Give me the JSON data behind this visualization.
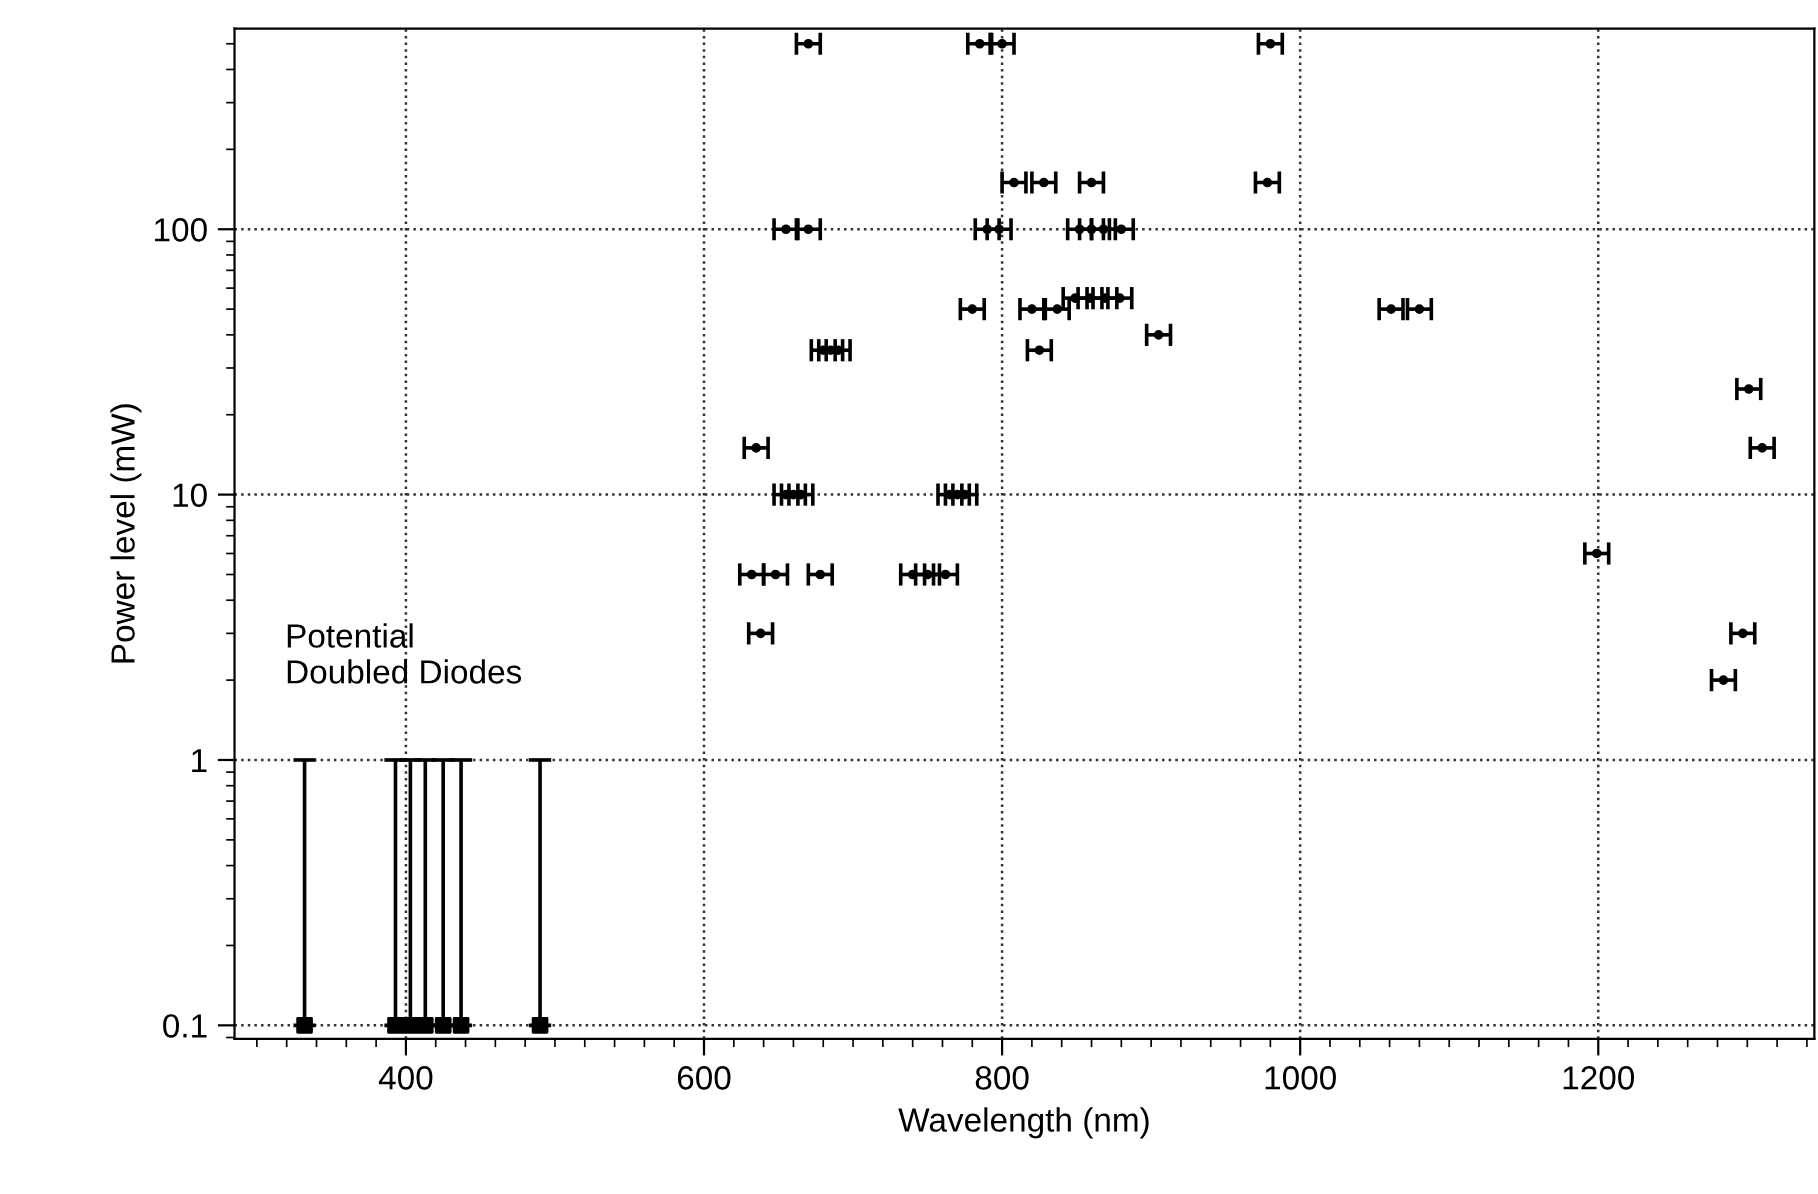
{
  "chart_data": {
    "type": "scatter",
    "xlabel": "Wavelength (nm)",
    "ylabel": "Power level (mW)",
    "log": "y",
    "grid": true,
    "xlim": [
      285,
      1345
    ],
    "xticks": [
      400,
      600,
      800,
      1000,
      1200
    ],
    "ylim": [
      0.089,
      570
    ],
    "yticks": [
      0.1,
      1,
      10,
      100
    ],
    "annotations": [
      "Potential\nDoubled Diodes"
    ],
    "series": [
      {
        "color": "#000000",
        "marker": "circle",
        "x": [
          670,
          785,
          800,
          980,
          808,
          828,
          860,
          978,
          655,
          670,
          790,
          798,
          852,
          860,
          868,
          880,
          780,
          820,
          837,
          849,
          859,
          869,
          879,
          905,
          1061,
          1080,
          680,
          685,
          690,
          825,
          635,
          655,
          660,
          665,
          765,
          770,
          775,
          1301,
          1310,
          1199,
          632,
          648,
          678,
          740,
          750,
          762,
          638,
          1297,
          1284
        ],
        "values": [
          500,
          500,
          500,
          500,
          150,
          150,
          150,
          150,
          100,
          100,
          100,
          100,
          100,
          100,
          100,
          100,
          50,
          50,
          50,
          55,
          55,
          55,
          55,
          40,
          50,
          50,
          35,
          35,
          35,
          35,
          15,
          10,
          10,
          10,
          10,
          10,
          10,
          25,
          15,
          6,
          5,
          5,
          5,
          5,
          5,
          5,
          3,
          3,
          2
        ],
        "xerrors": [
          8,
          8,
          8,
          8,
          8,
          8,
          8,
          8,
          8,
          8,
          8,
          8,
          8,
          8,
          8,
          8,
          8,
          8,
          8,
          8,
          8,
          8,
          8,
          8,
          8,
          8,
          8,
          8,
          8,
          8,
          8,
          8,
          8,
          8,
          8,
          8,
          8,
          8,
          8,
          8,
          8,
          8,
          8,
          8,
          8,
          8,
          8,
          8,
          8
        ]
      },
      {
        "color": "#000000",
        "marker": "square",
        "x": [
          332,
          393,
          403,
          413,
          425,
          437,
          490
        ],
        "values": [
          0.1,
          0.1,
          0.1,
          0.1,
          0.1,
          0.1,
          0.1
        ],
        "errors": [
          [
            0.1,
            1
          ],
          [
            0.1,
            1
          ],
          [
            0.1,
            1
          ],
          [
            0.1,
            1
          ],
          [
            0.1,
            1
          ],
          [
            0.1,
            1
          ],
          [
            0.1,
            1
          ]
        ]
      }
    ]
  }
}
